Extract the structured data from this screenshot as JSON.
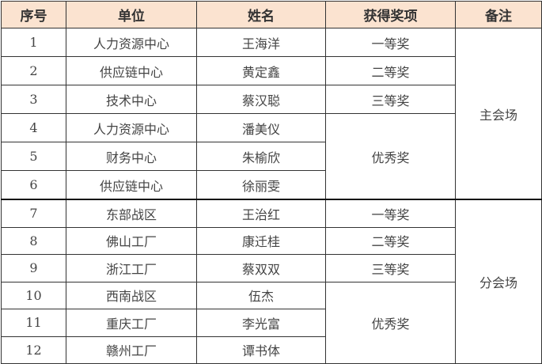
{
  "headers": [
    "序号",
    "单位",
    "姓名",
    "获得奖项",
    "备注"
  ],
  "colors": {
    "header_bg": "#FBE3D0",
    "border": "#333333"
  },
  "groups": [
    {
      "remark": "主会场",
      "rows": [
        {
          "no": "1",
          "unit": "人力资源中心",
          "name": "王海洋",
          "award": "一等奖"
        },
        {
          "no": "2",
          "unit": "供应链中心",
          "name": "黄定鑫",
          "award": "二等奖"
        },
        {
          "no": "3",
          "unit": "技术中心",
          "name": "蔡汉聪",
          "award": "三等奖"
        },
        {
          "no": "4",
          "unit": "人力资源中心",
          "name": "潘美仪",
          "award": "优秀奖"
        },
        {
          "no": "5",
          "unit": "财务中心",
          "name": "朱榆欣"
        },
        {
          "no": "6",
          "unit": "供应链中心",
          "name": "徐丽雯"
        }
      ]
    },
    {
      "remark": "分会场",
      "rows": [
        {
          "no": "7",
          "unit": "东部战区",
          "name": "王治红",
          "award": "一等奖"
        },
        {
          "no": "8",
          "unit": "佛山工厂",
          "name": "康迁桂",
          "award": "二等奖"
        },
        {
          "no": "9",
          "unit": "浙江工厂",
          "name": "蔡双双",
          "award": "三等奖"
        },
        {
          "no": "10",
          "unit": "西南战区",
          "name": "伍杰",
          "award": "优秀奖"
        },
        {
          "no": "11",
          "unit": "重庆工厂",
          "name": "李光富"
        },
        {
          "no": "12",
          "unit": "赣州工厂",
          "name": "谭书体"
        }
      ]
    }
  ]
}
